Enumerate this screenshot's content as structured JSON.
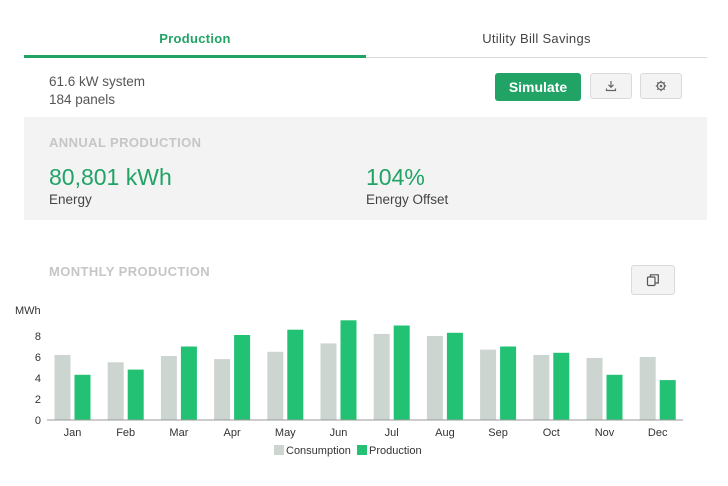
{
  "tabs": [
    {
      "label": "Production",
      "active": true
    },
    {
      "label": "Utility Bill Savings",
      "active": false
    }
  ],
  "system": {
    "size": "61.6 kW system",
    "panels": "184 panels"
  },
  "actions": {
    "simulate_label": "Simulate",
    "download_icon": "download-icon",
    "settings_icon": "gear-icon",
    "copy_icon": "copy-icon"
  },
  "annual": {
    "heading": "ANNUAL PRODUCTION",
    "energy_value": "80,801 kWh",
    "energy_label": "Energy",
    "offset_value": "104%",
    "offset_label": "Energy Offset"
  },
  "monthly": {
    "heading": "MONTHLY PRODUCTION"
  },
  "colors": {
    "accent": "#21a366",
    "production": "#22c174",
    "consumption": "#cdd5d0"
  },
  "chart_data": {
    "type": "bar",
    "ylabel": "MWh",
    "ylim": [
      0,
      10
    ],
    "yticks": [
      0,
      2,
      4,
      6,
      8
    ],
    "categories": [
      "Jan",
      "Feb",
      "Mar",
      "Apr",
      "May",
      "Jun",
      "Jul",
      "Aug",
      "Sep",
      "Oct",
      "Nov",
      "Dec"
    ],
    "series": [
      {
        "name": "Consumption",
        "values": [
          6.2,
          5.5,
          6.1,
          5.8,
          6.5,
          7.3,
          8.2,
          8.0,
          6.7,
          6.2,
          5.9,
          6.0
        ]
      },
      {
        "name": "Production",
        "values": [
          4.3,
          4.8,
          7.0,
          8.1,
          8.6,
          9.5,
          9.0,
          8.3,
          7.0,
          6.4,
          4.3,
          3.8
        ]
      }
    ],
    "legend": "bottom",
    "grid": false
  }
}
